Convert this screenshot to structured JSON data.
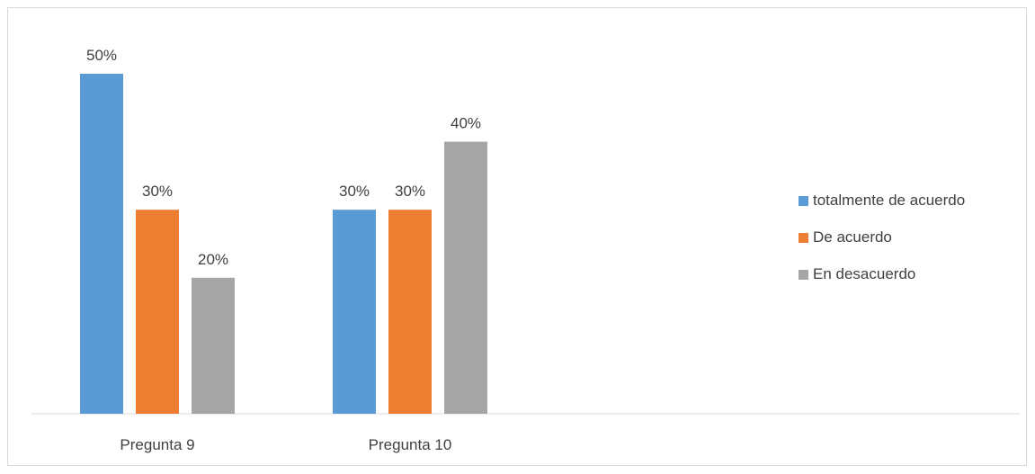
{
  "chart_data": {
    "type": "bar",
    "categories": [
      "Pregunta 9",
      "Pregunta 10"
    ],
    "series": [
      {
        "name": "totalmente de acuerdo",
        "values": [
          50,
          30
        ],
        "labels": [
          "50%",
          "30%"
        ],
        "color": "#5b9bd5"
      },
      {
        "name": "De acuerdo",
        "values": [
          30,
          30
        ],
        "labels": [
          "30%",
          "30%"
        ],
        "color": "#ed7d31"
      },
      {
        "name": "En desacuerdo",
        "values": [
          20,
          40
        ],
        "labels": [
          "20%",
          "40%"
        ],
        "color": "#a5a5a5"
      }
    ],
    "ylim": [
      0,
      50
    ],
    "grid": false,
    "legend_position": "right",
    "axis_color": "#d9d9d9"
  }
}
